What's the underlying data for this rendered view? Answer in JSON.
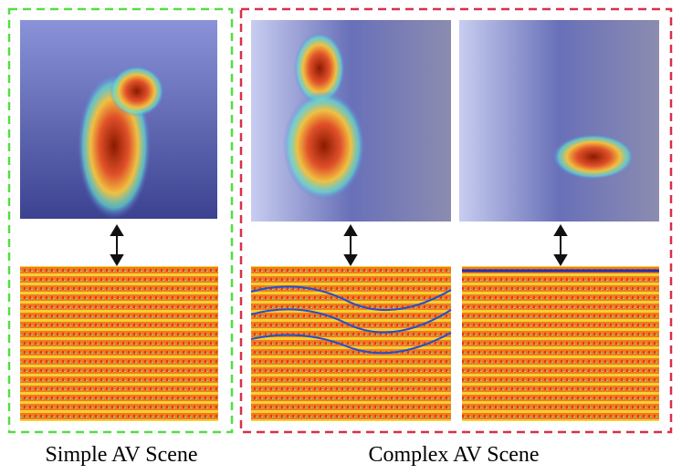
{
  "panels": [
    {
      "caption": "Simple AV Scene"
    },
    {
      "caption": "Complex AV Scene"
    }
  ]
}
